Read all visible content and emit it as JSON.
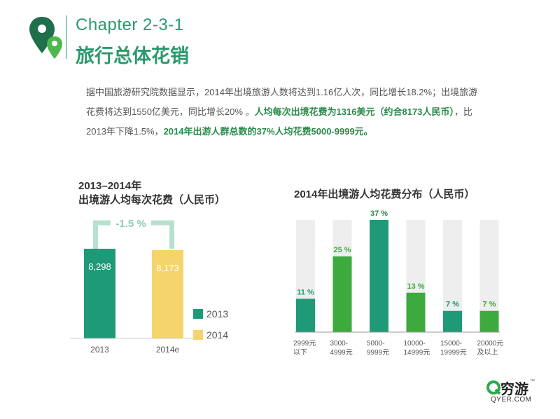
{
  "header": {
    "chapter": "Chapter 2-3-1",
    "title": "旅行总体花销"
  },
  "intro": {
    "line1_normal": "据中国旅游研究院数据显示，2014年出境旅游人数将达到1.16亿人次，同比增长18.2%；出境旅游花费将达到1550亿美元，同比增长20% 。",
    "line1_highlight": "人均每次出境花费为1316美元（约合8173人民币）",
    "line2_normal": "，比2013年下降1.5%，",
    "line2_highlight": "2014年出游人群总数的37%人均花费5000-9999元。"
  },
  "brand": {
    "name": "穷游",
    "url": "QYER.COM",
    "tm": "™"
  },
  "colors": {
    "teal": "#1f9a78",
    "yellow": "#f5d56b",
    "green": "#3daa3d",
    "track": "#eeeeee",
    "bracket": "#b7e0cf",
    "accent_text": "#2a9a6c"
  },
  "chart_data": [
    {
      "type": "bar",
      "title_line1": "2013–2014年",
      "title_line2": "出境游人均每次花费（人民币）",
      "categories": [
        "2013",
        "2014e"
      ],
      "values": [
        8298,
        8173
      ],
      "value_labels": [
        "8,298",
        "8,173"
      ],
      "legend": [
        "2013",
        "2014"
      ],
      "annotation": "-1.5 %"
    },
    {
      "type": "bar",
      "title": "2014年出境游人均花费分布（人民币）",
      "categories": [
        [
          "2999元",
          "以下"
        ],
        [
          "3000-",
          "4999元"
        ],
        [
          "5000-",
          "9999元"
        ],
        [
          "10000-",
          "14999元"
        ],
        [
          "15000-",
          "19999元"
        ],
        [
          "20000元",
          "及以上"
        ]
      ],
      "values": [
        11,
        25,
        37,
        13,
        7,
        7
      ],
      "value_labels": [
        "11 %",
        "25 %",
        "37 %",
        "13 %",
        "7 %",
        "7 %"
      ],
      "ylim": [
        0,
        37
      ]
    }
  ]
}
